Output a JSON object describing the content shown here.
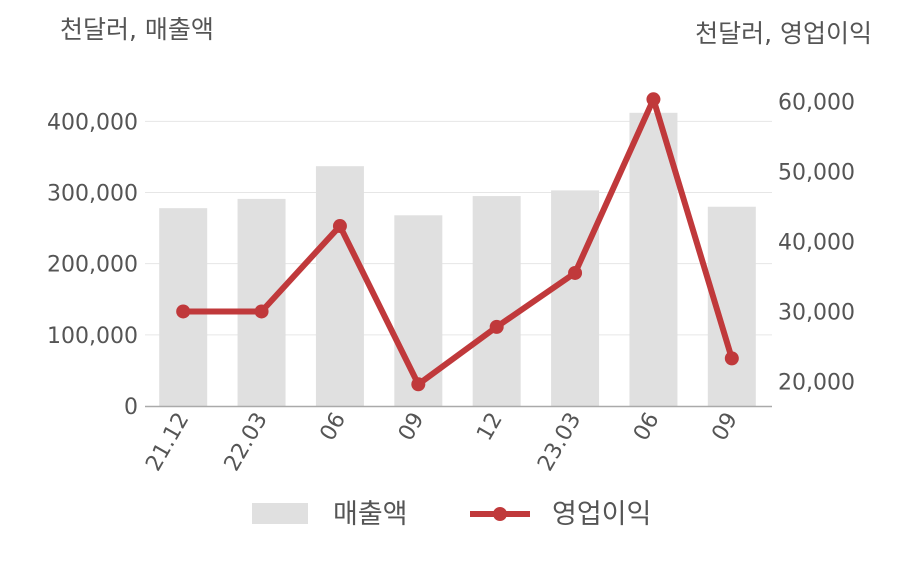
{
  "units": {
    "left": "천달러, 매출액",
    "right": "천달러, 영업이익"
  },
  "colors": {
    "bar": "#e0e0e0",
    "line": "#c0393b",
    "axis": "#aaaaaa",
    "grid": "#e6e6e6",
    "text": "#555555"
  },
  "chart_data": {
    "type": "bar",
    "categories": [
      "21.12",
      "22.03",
      "06",
      "09",
      "12",
      "23.03",
      "06",
      "09"
    ],
    "y_left": {
      "ticks": [
        0,
        100000,
        200000,
        300000,
        400000
      ],
      "tick_labels": [
        "0",
        "100,000",
        "200,000",
        "300,000",
        "400,000"
      ],
      "range": [
        0,
        430000
      ]
    },
    "y_right": {
      "ticks": [
        20000,
        30000,
        40000,
        50000,
        60000
      ],
      "tick_labels": [
        "20,000",
        "30,000",
        "40,000",
        "50,000",
        "60,000"
      ],
      "range": [
        16500,
        60200
      ]
    },
    "series": [
      {
        "name": "매출액",
        "type": "bar",
        "axis": "left",
        "values": [
          278000,
          291000,
          337000,
          268000,
          295000,
          303000,
          412000,
          280000
        ]
      },
      {
        "name": "영업이익",
        "type": "line",
        "axis": "right",
        "values": [
          30000,
          30000,
          42200,
          19600,
          27800,
          35500,
          60300,
          23300
        ]
      }
    ],
    "legend": {
      "position": "bottom"
    }
  }
}
